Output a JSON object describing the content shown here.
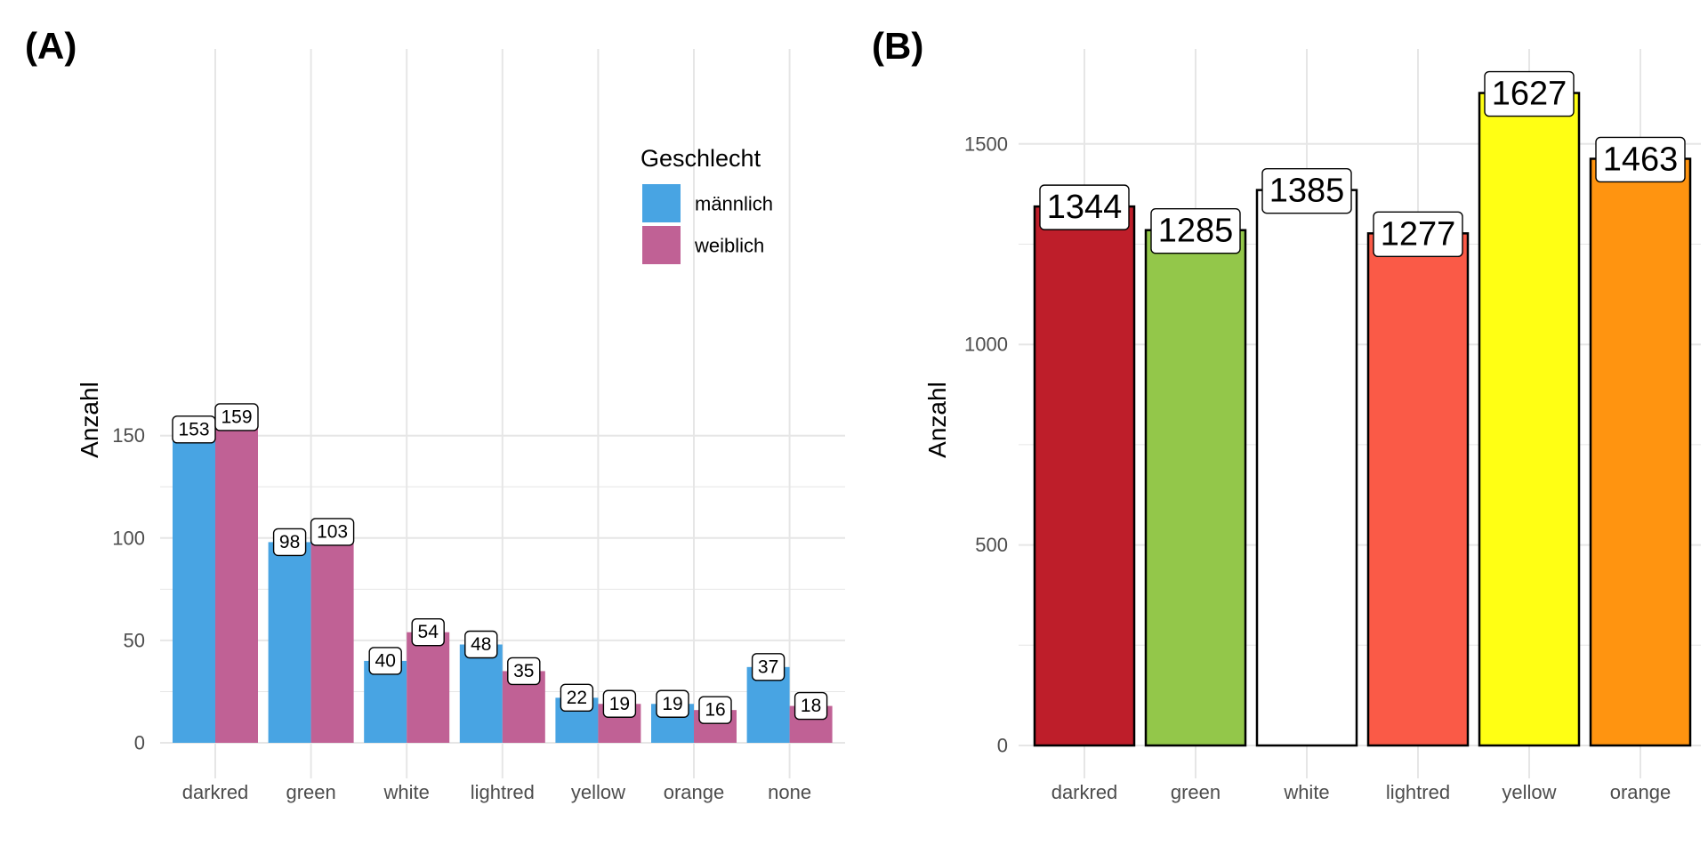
{
  "panels": {
    "a_tag": "(A)",
    "b_tag": "(B)"
  },
  "colors": {
    "männlich": "#48A4E3",
    "weiblich": "#C06195",
    "grid": "#E6E6E6",
    "darkred": "#BE1E2A",
    "green": "#93C74A",
    "white": "#FFFFFF",
    "lightred": "#FA5A47",
    "yellow": "#FFFF14",
    "orange": "#FF9410"
  },
  "chart_data": [
    {
      "type": "bar",
      "panel": "(A)",
      "categories": [
        "darkred",
        "green",
        "white",
        "lightred",
        "yellow",
        "orange",
        "none"
      ],
      "series": [
        {
          "name": "männlich",
          "values": [
            153,
            98,
            40,
            48,
            22,
            19,
            37
          ]
        },
        {
          "name": "weiblich",
          "values": [
            159,
            103,
            54,
            35,
            19,
            16,
            18
          ]
        }
      ],
      "ylabel": "Anzahl",
      "xlabel": "",
      "ylim": [
        0,
        160
      ],
      "yticks": [
        0,
        50,
        100,
        150
      ],
      "legend": {
        "title": "Geschlecht",
        "position": "top-right"
      },
      "grid": true
    },
    {
      "type": "bar",
      "panel": "(B)",
      "categories": [
        "darkred",
        "green",
        "white",
        "lightred",
        "yellow",
        "orange"
      ],
      "values": [
        1344,
        1285,
        1385,
        1277,
        1627,
        1463
      ],
      "ylabel": "Anzahl",
      "xlabel": "",
      "ylim": [
        0,
        1650
      ],
      "yticks": [
        0,
        500,
        1000,
        1500
      ],
      "grid": true
    }
  ]
}
